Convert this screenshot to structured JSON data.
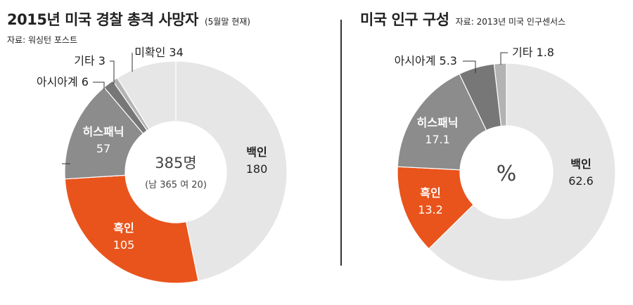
{
  "chart_data": [
    {
      "type": "pie",
      "title": "2015년 미국 경찰 총격 사망자",
      "subtitle": "(5월말 현재)",
      "source": "자료: 워싱턴 포스트",
      "center_value": "385명",
      "center_note": "(남 365 여 20)",
      "slices": [
        {
          "label": "백인",
          "value": 180,
          "display": "180",
          "color": "#e6e6e6"
        },
        {
          "label": "흑인",
          "value": 105,
          "display": "105",
          "color": "#e9541c"
        },
        {
          "label": "히스패닉",
          "value": 57,
          "display": "57",
          "color": "#8c8c8c"
        },
        {
          "label": "아시아계",
          "value": 6,
          "display": "6",
          "color": "#777777"
        },
        {
          "label": "기타",
          "value": 3,
          "display": "3",
          "color": "#b3b3b3"
        },
        {
          "label": "미확인",
          "value": 34,
          "display": "34",
          "color": "#e6e6e6"
        }
      ]
    },
    {
      "type": "pie",
      "title": "미국 인구 구성",
      "source": "자료: 2013년 미국 인구센서스",
      "center_value": "%",
      "slices": [
        {
          "label": "백인",
          "value": 62.6,
          "display": "62.6",
          "color": "#e6e6e6"
        },
        {
          "label": "흑인",
          "value": 13.2,
          "display": "13.2",
          "color": "#e9541c"
        },
        {
          "label": "히스패닉",
          "value": 17.1,
          "display": "17.1",
          "color": "#8c8c8c"
        },
        {
          "label": "아시아계",
          "value": 5.3,
          "display": "5.3",
          "color": "#777777"
        },
        {
          "label": "기타",
          "value": 1.8,
          "display": "1.8",
          "color": "#b3b3b3"
        }
      ]
    }
  ]
}
